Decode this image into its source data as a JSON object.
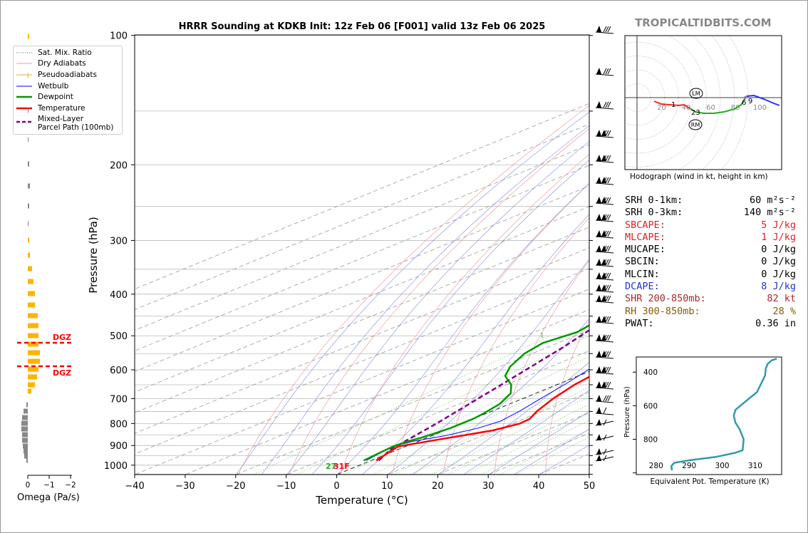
{
  "branding": "TROPICALTIDBITS.COM",
  "chart_data": [
    {
      "type": "line",
      "title": "HRRR Sounding at KDKB Init: 12z Feb 06 [F001] valid 13z Feb 06 2025",
      "xlabel": "Temperature (°C)",
      "ylabel": "Pressure (hPa)",
      "xlim": [
        -40,
        50
      ],
      "ylim": [
        1050,
        100
      ],
      "y_scale": "log",
      "x_ticks": [
        "−40",
        "−30",
        "−20",
        "−10",
        "0",
        "10",
        "20",
        "30",
        "40",
        "50"
      ],
      "y_ticks": [
        "100",
        "200",
        "300",
        "400",
        "500",
        "600",
        "700",
        "800",
        "900",
        "1000"
      ],
      "legend_placement": "top-left",
      "legend": [
        "Sat. Mix. Ratio",
        "Dry Adiabats",
        "Pseudoadiabats",
        "Wetbulb",
        "Dewpoint",
        "Temperature",
        "Mixed-Layer\nParcel Path (100mb)"
      ],
      "mixing_ratio_labels": [
        "1",
        "2",
        "4",
        "6",
        "8",
        "10",
        "13",
        "16",
        "20",
        "24",
        "30",
        "36"
      ],
      "surface_labels": {
        "dewpoint": "27",
        "temperature": "31F"
      },
      "series": [
        {
          "name": "Temperature",
          "color": "#ff0000",
          "points": [
            [
              1.0,
              975
            ],
            [
              -1.5,
              905
            ],
            [
              2.0,
              880
            ],
            [
              9.5,
              830
            ],
            [
              11.5,
              800
            ],
            [
              11.2,
              780
            ],
            [
              9.0,
              750
            ],
            [
              6.0,
              700
            ],
            [
              3.5,
              650
            ],
            [
              1.8,
              600
            ],
            [
              1.0,
              570
            ],
            [
              -0.5,
              530
            ],
            [
              -3.0,
              500
            ],
            [
              -6.0,
              460
            ],
            [
              -9.5,
              420
            ],
            [
              -13.0,
              380
            ],
            [
              -16.5,
              340
            ],
            [
              -19.5,
              300
            ],
            [
              -19.0,
              270
            ],
            [
              -12.0,
              245
            ],
            [
              -8.5,
              225
            ],
            [
              -3.0,
              200
            ],
            [
              -0.5,
              170
            ],
            [
              0.0,
              150
            ],
            [
              1.0,
              130
            ],
            [
              0.5,
              115
            ],
            [
              1.0,
              100
            ]
          ]
        },
        {
          "name": "Dewpoint",
          "color": "#009900",
          "points": [
            [
              -1.5,
              975
            ],
            [
              -2.5,
              905
            ],
            [
              -2.0,
              880
            ],
            [
              -1.0,
              860
            ],
            [
              0.0,
              820
            ],
            [
              0.0,
              780
            ],
            [
              -0.5,
              760
            ],
            [
              -2.0,
              720
            ],
            [
              -5.0,
              680
            ],
            [
              -9.0,
              650
            ],
            [
              -14.5,
              620
            ],
            [
              -18.0,
              590
            ],
            [
              -21.5,
              550
            ],
            [
              -23.0,
              520
            ],
            [
              -21.5,
              490
            ],
            [
              -23.0,
              460
            ],
            [
              -25.5,
              430
            ],
            [
              -27.0,
              400
            ],
            [
              -27.0,
              360
            ],
            [
              -28.5,
              330
            ],
            [
              -29.0,
              300
            ],
            [
              -28.5,
              270
            ],
            [
              -30.0,
              250
            ],
            [
              -33.0,
              225
            ],
            [
              -36.0,
              200
            ],
            [
              -35.0,
              180
            ],
            [
              -33.0,
              160
            ],
            [
              -33.0,
              140
            ],
            [
              -30.0,
              120
            ],
            [
              -26.0,
              100
            ]
          ]
        },
        {
          "name": "Wetbulb",
          "color": "#0000ff",
          "points": [
            [
              -1.0,
              975
            ],
            [
              -2.5,
              905
            ],
            [
              -1.0,
              880
            ],
            [
              2.5,
              855
            ],
            [
              5.5,
              820
            ],
            [
              6.5,
              790
            ],
            [
              5.5,
              750
            ],
            [
              3.5,
              700
            ],
            [
              1.5,
              650
            ],
            [
              -1.0,
              600
            ],
            [
              -2.0,
              570
            ],
            [
              -3.5,
              530
            ],
            [
              -5.5,
              500
            ],
            [
              -8.0,
              460
            ],
            [
              -11.0,
              420
            ],
            [
              -14.0,
              380
            ],
            [
              -17.0,
              340
            ],
            [
              -19.5,
              300
            ],
            [
              -19.0,
              270
            ],
            [
              -13.0,
              245
            ],
            [
              -9.0,
              225
            ],
            [
              -4.0,
              200
            ],
            [
              -2.0,
              170
            ],
            [
              -1.0,
              150
            ],
            [
              -0.5,
              130
            ],
            [
              -0.5,
              115
            ],
            [
              1.0,
              100
            ]
          ]
        },
        {
          "name": "Mixed-Layer Parcel Path (100mb)",
          "color": "#800080",
          "points": [
            [
              1.5,
              975
            ],
            [
              -1.5,
              920
            ],
            [
              -5.0,
              800
            ],
            [
              -11.0,
              650
            ],
            [
              -17.0,
              530
            ],
            [
              -25.0,
              420
            ],
            [
              -33.0,
              340
            ],
            [
              -40.0,
              290
            ]
          ]
        }
      ]
    },
    {
      "type": "bar",
      "xlabel": "Omega (Pa/s)",
      "x_ticks": [
        "0",
        "−1",
        "−2"
      ],
      "dgz_label": "DGZ"
    },
    {
      "type": "line",
      "title": "Hodograph (wind in kt, height in km)",
      "ring_labels": [
        "20",
        "40",
        "60",
        "80",
        "100"
      ],
      "markers": [
        "LM",
        "RM"
      ],
      "height_labels": [
        "1",
        "23",
        "6",
        "9"
      ]
    },
    {
      "type": "line",
      "xlabel": "Equivalent Pot. Temperature (K)",
      "ylabel": "Pressure (hPa)",
      "x_ticks": [
        "280",
        "290",
        "300",
        "310"
      ],
      "y_ticks": [
        "400",
        "600",
        "800"
      ],
      "series": [
        {
          "color": "#3399aa",
          "points": [
            [
              284.8,
              985
            ],
            [
              284.6,
              960
            ],
            [
              285.5,
              940
            ],
            [
              290,
              925
            ],
            [
              298,
              905
            ],
            [
              304,
              880
            ],
            [
              306.2,
              865
            ],
            [
              306.5,
              800
            ],
            [
              305.3,
              740
            ],
            [
              304,
              700
            ],
            [
              303.5,
              660
            ],
            [
              304,
              625
            ],
            [
              305.5,
              600
            ],
            [
              308,
              560
            ],
            [
              310.5,
              520
            ],
            [
              312,
              460
            ],
            [
              313,
              420
            ],
            [
              313.2,
              380
            ],
            [
              313.8,
              350
            ],
            [
              315,
              330
            ],
            [
              316.5,
              320
            ]
          ]
        }
      ]
    }
  ],
  "stats": [
    {
      "label": "SRH 0-1km:",
      "value": "60",
      "unit": " m²s⁻²",
      "color": "#000000"
    },
    {
      "label": "SRH 0-3km:",
      "value": "140",
      "unit": " m²s⁻²",
      "color": "#000000"
    },
    {
      "label": "SBCAPE:",
      "value": "5 J/kg",
      "unit": "",
      "color": "#dd2222"
    },
    {
      "label": "MLCAPE:",
      "value": "1 J/kg",
      "unit": "",
      "color": "#dd2222"
    },
    {
      "label": "MUCAPE:",
      "value": "0 J/kg",
      "unit": "",
      "color": "#000000"
    },
    {
      "label": "SBCIN:",
      "value": "0 J/kg",
      "unit": "",
      "color": "#000000"
    },
    {
      "label": "MLCIN:",
      "value": "0 J/kg",
      "unit": "",
      "color": "#000000"
    },
    {
      "label": "DCAPE:",
      "value": "8 J/kg",
      "unit": "",
      "color": "#2233cc"
    },
    {
      "label": "SHR 200-850mb:",
      "value": "82 kt",
      "unit": "",
      "color": "#a52a2a"
    },
    {
      "label": "RH 300-850mb:",
      "value": "28 %",
      "unit": "",
      "color": "#8b5a00"
    },
    {
      "label": "PWAT:",
      "value": "0.36 in",
      "unit": "",
      "color": "#000000"
    }
  ]
}
